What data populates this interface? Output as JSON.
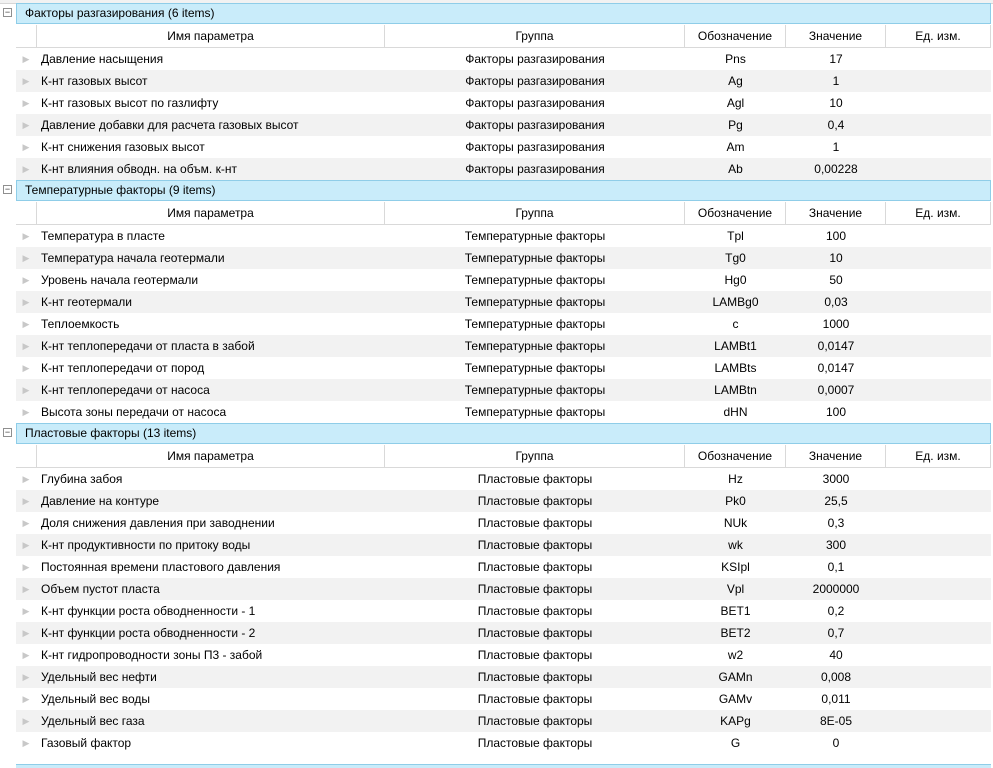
{
  "columns": {
    "name": "Имя параметра",
    "group": "Группа",
    "symbol": "Обозначение",
    "value": "Значение",
    "unit": "Ед. изм."
  },
  "groups": [
    {
      "title": "Факторы разгазирования (6 items)",
      "rows": [
        {
          "name": "Давление насыщения",
          "group": "Факторы разгазирования",
          "symbol": "Pns",
          "value": "17",
          "unit": ""
        },
        {
          "name": "К-нт газовых высот",
          "group": "Факторы разгазирования",
          "symbol": "Ag",
          "value": "1",
          "unit": ""
        },
        {
          "name": "К-нт газовых высот по газлифту",
          "group": "Факторы разгазирования",
          "symbol": "Agl",
          "value": "10",
          "unit": ""
        },
        {
          "name": "Давление добавки для расчета газовых высот",
          "group": "Факторы разгазирования",
          "symbol": "Pg",
          "value": "0,4",
          "unit": ""
        },
        {
          "name": "К-нт снижения газовых высот",
          "group": "Факторы разгазирования",
          "symbol": "Am",
          "value": "1",
          "unit": ""
        },
        {
          "name": "К-нт влияния обводн. на объм. к-нт",
          "group": "Факторы разгазирования",
          "symbol": "Ab",
          "value": "0,00228",
          "unit": ""
        }
      ]
    },
    {
      "title": "Температурные факторы (9 items)",
      "rows": [
        {
          "name": "Температура в пласте",
          "group": "Температурные факторы",
          "symbol": "Tpl",
          "value": "100",
          "unit": ""
        },
        {
          "name": "Температура начала геотермали",
          "group": "Температурные факторы",
          "symbol": "Tg0",
          "value": "10",
          "unit": ""
        },
        {
          "name": "Уровень начала геотермали",
          "group": "Температурные факторы",
          "symbol": "Hg0",
          "value": "50",
          "unit": ""
        },
        {
          "name": "К-нт геотермали",
          "group": "Температурные факторы",
          "symbol": "LAMBg0",
          "value": "0,03",
          "unit": ""
        },
        {
          "name": "Теплоемкость",
          "group": "Температурные факторы",
          "symbol": "c",
          "value": "1000",
          "unit": ""
        },
        {
          "name": "К-нт теплопередачи от пласта в забой",
          "group": "Температурные факторы",
          "symbol": "LAMBt1",
          "value": "0,0147",
          "unit": ""
        },
        {
          "name": "К-нт теплопередачи от пород",
          "group": "Температурные факторы",
          "symbol": "LAMBts",
          "value": "0,0147",
          "unit": ""
        },
        {
          "name": "К-нт теплопередачи от насоса",
          "group": "Температурные факторы",
          "symbol": "LAMBtn",
          "value": "0,0007",
          "unit": ""
        },
        {
          "name": "Высота зоны передачи от насоса",
          "group": "Температурные факторы",
          "symbol": "dHN",
          "value": "100",
          "unit": ""
        }
      ]
    },
    {
      "title": "Пластовые факторы (13 items)",
      "rows": [
        {
          "name": "Глубина забоя",
          "group": "Пластовые факторы",
          "symbol": "Hz",
          "value": "3000",
          "unit": ""
        },
        {
          "name": "Давление на контуре",
          "group": "Пластовые факторы",
          "symbol": "Pk0",
          "value": "25,5",
          "unit": ""
        },
        {
          "name": "Доля снижения давления при заводнении",
          "group": "Пластовые факторы",
          "symbol": "NUk",
          "value": "0,3",
          "unit": ""
        },
        {
          "name": "К-нт продуктивности по притоку воды",
          "group": "Пластовые факторы",
          "symbol": "wk",
          "value": "300",
          "unit": ""
        },
        {
          "name": "Постоянная времени пластового давления",
          "group": "Пластовые факторы",
          "symbol": "KSIpl",
          "value": "0,1",
          "unit": ""
        },
        {
          "name": "Объем пустот пласта",
          "group": "Пластовые факторы",
          "symbol": "Vpl",
          "value": "2000000",
          "unit": ""
        },
        {
          "name": "К-нт функции роста обводненности - 1",
          "group": "Пластовые факторы",
          "symbol": "BET1",
          "value": "0,2",
          "unit": ""
        },
        {
          "name": "К-нт функции роста обводненности - 2",
          "group": "Пластовые факторы",
          "symbol": "BET2",
          "value": "0,7",
          "unit": ""
        },
        {
          "name": "К-нт гидропроводности зоны П3 - забой",
          "group": "Пластовые факторы",
          "symbol": "w2",
          "value": "40",
          "unit": ""
        },
        {
          "name": "Удельный вес нефти",
          "group": "Пластовые факторы",
          "symbol": "GAMn",
          "value": "0,008",
          "unit": ""
        },
        {
          "name": "Удельный вес воды",
          "group": "Пластовые факторы",
          "symbol": "GAMv",
          "value": "0,011",
          "unit": ""
        },
        {
          "name": "Удельный вес газа",
          "group": "Пластовые факторы",
          "symbol": "KAPg",
          "value": "8E-05",
          "unit": ""
        },
        {
          "name": "Газовый фактор",
          "group": "Пластовые факторы",
          "symbol": "G",
          "value": "0",
          "unit": ""
        }
      ]
    }
  ],
  "icons": {
    "collapse": "minus-box-icon",
    "row_indicator": "row-arrow-icon"
  },
  "colors": {
    "group_bg": "#c9ecfa",
    "group_border": "#8fcde8",
    "alt_row": "#f2f2f2"
  }
}
